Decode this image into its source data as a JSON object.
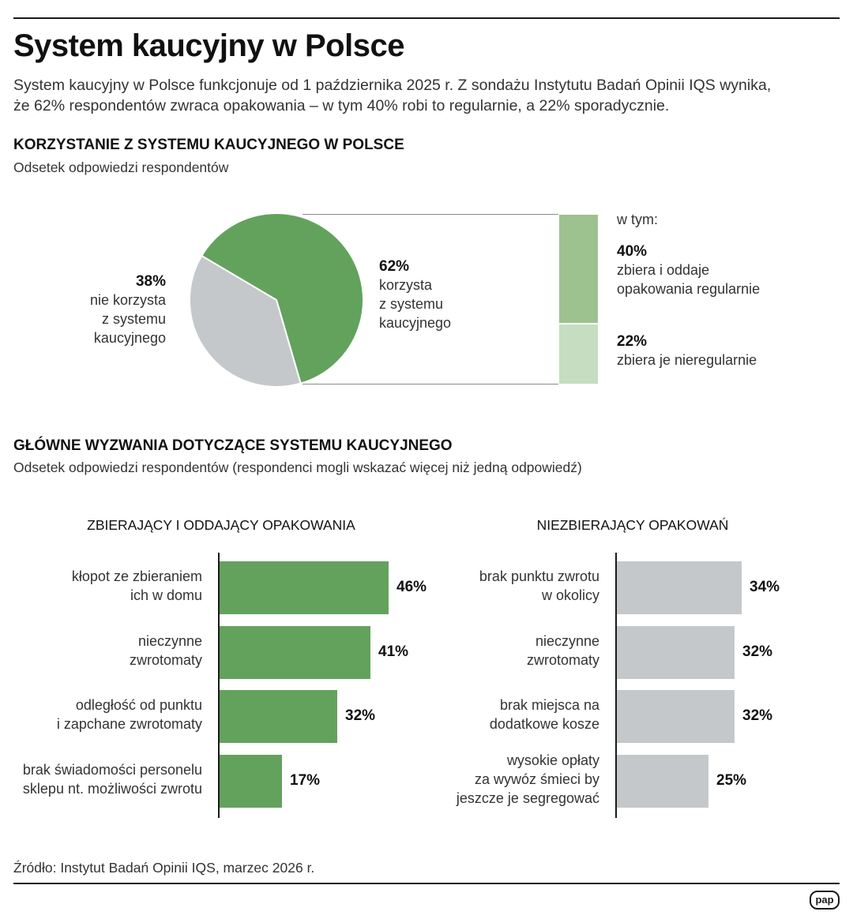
{
  "header": {
    "title": "System kaucyjny w Polsce",
    "intro_line1": "System kaucyjny w Polsce funkcjonuje od 1 października 2025 r. Z sondażu Instytutu Badań Opinii IQS wynika,",
    "intro_line2": "że 62% respondentów zwraca opakowania – w tym 40% robi to regularnie, a 22% sporadycznie."
  },
  "section1": {
    "title": "KORZYSTANIE Z SYSTEMU KAUCYJNEGO W POLSCE",
    "subtitle": "Odsetek odpowiedzi respondentów"
  },
  "section2": {
    "title": "GŁÓWNE WYZWANIA DOTYCZĄCE SYSTEMU KAUCYJNEGO",
    "subtitle": "Odsetek odpowiedzi respondentów (respondenci mogli wskazać więcej niż jedną odpowiedź)"
  },
  "colors": {
    "green": "#63a25d",
    "grey": "#c5c8cb",
    "green_mid": "#9dc290",
    "green_light": "#c6ddc1"
  },
  "chart_data": [
    {
      "type": "pie",
      "slices": [
        {
          "value": 62,
          "label": "62%",
          "lines": [
            "korzysta",
            "z systemu",
            "kaucyjnego"
          ],
          "color": "#63a25d"
        },
        {
          "value": 38,
          "label": "38%",
          "lines": [
            "nie korzysta",
            "z systemu",
            "kaucyjnego"
          ],
          "color": "#c5c8cb"
        }
      ],
      "breakdown": {
        "heading": "w tym:",
        "parts": [
          {
            "value": 40,
            "label": "40%",
            "lines": [
              "zbiera i oddaje",
              "opakowania regularnie"
            ],
            "color": "#9dc290"
          },
          {
            "value": 22,
            "label": "22%",
            "lines": [
              "zbiera je nieregularnie"
            ],
            "color": "#c6ddc1"
          }
        ]
      }
    },
    {
      "type": "bar",
      "orientation": "horizontal",
      "title": "ZBIERAJĄCY I ODDAJĄCY OPAKOWANIA",
      "color": "#63a25d",
      "categories": [
        [
          "kłopot ze zbieraniem",
          "ich w domu"
        ],
        [
          "nieczynne",
          "zwrotomaty"
        ],
        [
          "odległość od punktu",
          "i zapchane zwrotomaty"
        ],
        [
          "brak świadomości personelu",
          "sklepu nt. możliwości zwrotu"
        ]
      ],
      "values": [
        46,
        41,
        32,
        17
      ],
      "value_labels": [
        "46%",
        "41%",
        "32%",
        "17%"
      ]
    },
    {
      "type": "bar",
      "orientation": "horizontal",
      "title": "NIEZBIERAJĄCY OPAKOWAŃ",
      "color": "#c5c8cb",
      "categories": [
        [
          "brak punktu zwrotu",
          "w okolicy"
        ],
        [
          "nieczynne",
          "zwrotomaty"
        ],
        [
          "brak miejsca na",
          "dodatkowe kosze"
        ],
        [
          "wysokie opłaty",
          "za wywóz śmieci by",
          "jeszcze je segregować"
        ]
      ],
      "values": [
        34,
        32,
        32,
        25
      ],
      "value_labels": [
        "34%",
        "32%",
        "32%",
        "25%"
      ]
    }
  ],
  "footer": {
    "source": "Źródło: Instytut Badań Opinii IQS, marzec 2026 r.",
    "logo": "pap"
  }
}
